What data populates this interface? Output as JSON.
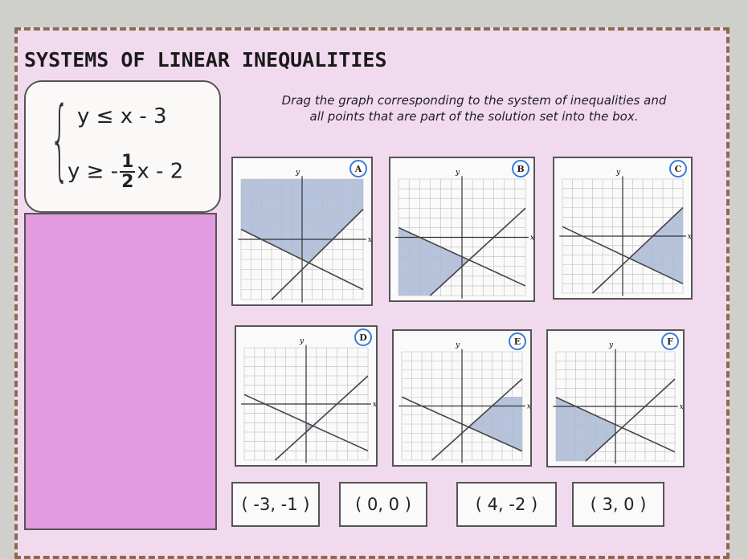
{
  "title": "SYSTEMS OF LINEAR INEQUALITIES",
  "system": {
    "inequality_1": "y ≤ x - 3",
    "inequality_2": {
      "before": "y ≥ -",
      "numerator": "1",
      "denominator": "2",
      "after": "x - 2"
    }
  },
  "instructions": "Drag the graph corresponding to the system of inequalities and all points that are part of the solution set into the box.",
  "axis_labels": {
    "x": "x",
    "y": "y"
  },
  "graphs": [
    "A",
    "B",
    "C",
    "D",
    "E",
    "F"
  ],
  "points": [
    "( -3, -1 )",
    "( 0, 0 )",
    "( 4, -2 )",
    "( 3, 0 )"
  ]
}
